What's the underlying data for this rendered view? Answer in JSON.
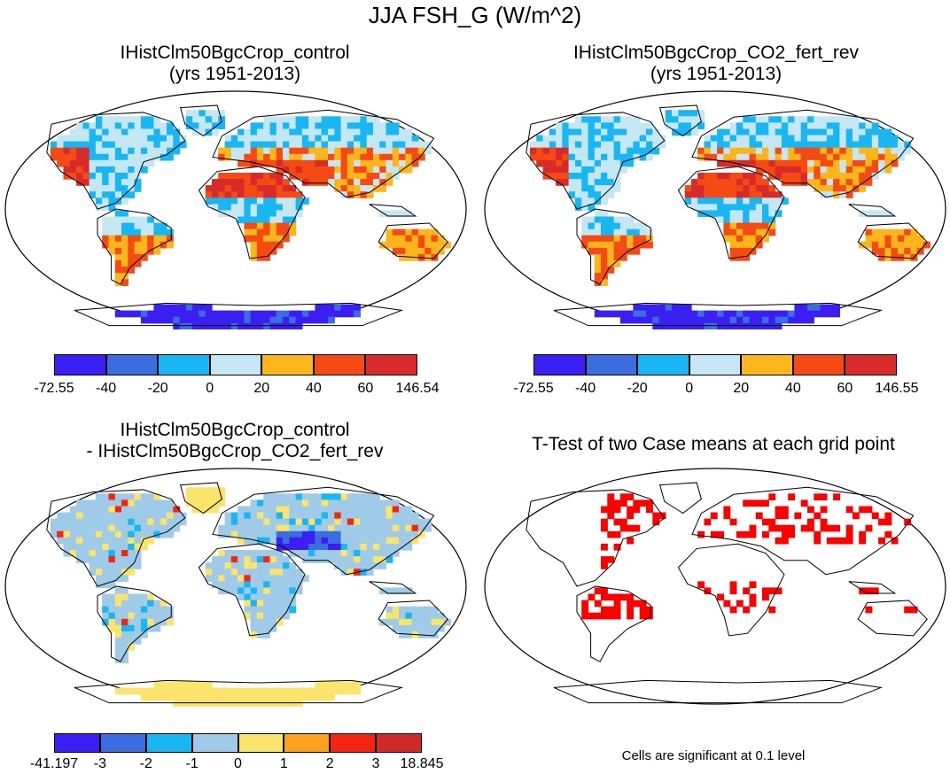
{
  "title": "JJA FSH_G (W/m^2)",
  "panels": [
    {
      "line1": "IHistClm50BgcCrop_control",
      "line2": "(yrs 1951-2013)"
    },
    {
      "line1": "IHistClm50BgcCrop_CO2_fert_rev",
      "line2": "(yrs 1951-2013)"
    },
    {
      "line1": "IHistClm50BgcCrop_control",
      "line2": "- IHistClm50BgcCrop_CO2_fert_rev"
    },
    {
      "line1": "T-Test of two Case means at each grid point",
      "line2": ""
    }
  ],
  "colorbars": [
    {
      "labels": [
        "-72.55",
        "-40",
        "-20",
        "0",
        "20",
        "40",
        "60",
        "146.54"
      ],
      "colors": [
        "#3b1ff2",
        "#3a6ee0",
        "#18b6f2",
        "#c5e7f4",
        "#fcb51a",
        "#f54a14",
        "#d82a28"
      ]
    },
    {
      "labels": [
        "-72.55",
        "-40",
        "-20",
        "0",
        "20",
        "40",
        "60",
        "146.55"
      ],
      "colors": [
        "#3b1ff2",
        "#3a6ee0",
        "#18b6f2",
        "#c5e7f4",
        "#fcb51a",
        "#f54a14",
        "#d82a28"
      ]
    },
    {
      "labels": [
        "-41.197",
        "-3",
        "-2",
        "-1",
        "0",
        "1",
        "2",
        "3",
        "18.845"
      ],
      "colors": [
        "#3b1ff2",
        "#3a6ee0",
        "#18b6f2",
        "#9fcbe8",
        "#fbe46c",
        "#fba11c",
        "#f52312",
        "#cf2a28"
      ]
    }
  ],
  "significance_note": "Cells are significant at 0.1 level",
  "colors": {
    "land_outline": "#000000",
    "significant": "#ff0000"
  }
}
